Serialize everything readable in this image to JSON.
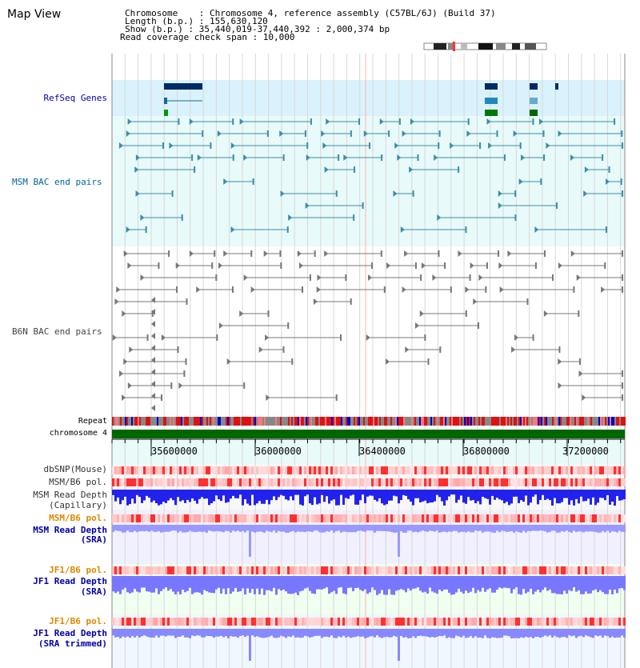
{
  "title": "Map View",
  "header": {
    "chromosome": "Chromosome    : Chromosome 4, reference assembly (C57BL/6J) (Build 37)",
    "length": "Length (b.p.) : 155,630,120",
    "show": "Show (b.p.) : 35,440,019-37,440,392 : 2,000,374 bp",
    "coverage": "Read coverage check span : 10,000"
  },
  "tracks": {
    "refseq": "RefSeq Genes",
    "msm_bac": "MSM BAC end pairs",
    "b6n_bac": "B6N BAC end pairs",
    "repeat": "Repeat",
    "chromosome": "chromosome 4",
    "dbsnp": "dbSNP(Mouse)",
    "msm_b6_pol_1": "MSM/B6 pol.",
    "msm_depth_cap_1": "MSM Read Depth",
    "msm_depth_cap_2": "(Capillary)",
    "msm_b6_pol_2": "MSM/B6 pol.",
    "msm_depth_sra_1": "MSM Read Depth",
    "msm_depth_sra_2": "(SRA)",
    "jf1_b6_pol_1": "JF1/B6 pol.",
    "jf1_depth_sra_1": "JF1 Read Depth",
    "jf1_depth_sra_2": "(SRA)",
    "jf1_b6_pol_2": "JF1/B6 pol.",
    "jf1_depth_trim_1": "JF1 Read Depth",
    "jf1_depth_trim_2": "(SRA trimmed)"
  },
  "axis": {
    "ticks": [
      "35600000",
      "36000000",
      "36400000",
      "36800000",
      "37200000"
    ]
  },
  "colors": {
    "label_blue": "#0000aa",
    "label_teal": "#006699",
    "label_gray": "#444444",
    "label_orange": "#dd8800",
    "chrom_green": "#006600",
    "depth_blue": "#3333ee",
    "depth_lightblue": "#8888ff"
  }
}
